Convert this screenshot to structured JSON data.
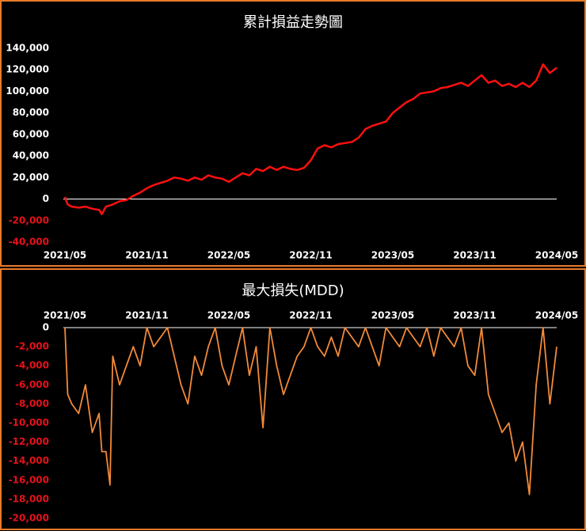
{
  "chart_data": [
    {
      "type": "line",
      "title": "累計損益走勢圖",
      "color": "#ff1010",
      "axis_color": "#ffffff",
      "tick_color": "#ffffff",
      "negative_tick_color": "#e8101a",
      "xaxis_position": "bottom",
      "x": [
        0,
        0.2,
        0.5,
        1,
        1.5,
        2,
        2.5,
        2.7,
        3,
        3.5,
        4,
        4.5,
        5,
        5.5,
        6,
        6.5,
        7,
        7.5,
        8,
        8.5,
        9,
        9.5,
        10,
        10.5,
        11,
        11.5,
        12,
        12.5,
        13,
        13.5,
        14,
        14.5,
        15,
        15.5,
        16,
        16.5,
        17,
        17.5,
        18,
        18.5,
        19,
        19.5,
        20,
        20.5,
        21,
        21.5,
        22,
        22.5,
        23,
        23.5,
        24,
        24.5,
        25,
        25.5,
        26,
        26.5,
        27,
        27.5,
        28,
        28.5,
        29,
        29.5,
        30,
        30.5,
        31,
        31.5,
        32,
        32.5,
        33,
        33.5,
        34,
        34.5,
        35,
        35.5,
        36
      ],
      "values": [
        2000,
        -5000,
        -7000,
        -8000,
        -7000,
        -9000,
        -10000,
        -14000,
        -7000,
        -5000,
        -2000,
        -1000,
        3000,
        6000,
        10000,
        13000,
        15000,
        17000,
        20000,
        19000,
        17000,
        20000,
        18000,
        22000,
        20000,
        19000,
        16000,
        20000,
        24000,
        22000,
        28000,
        26000,
        30000,
        27000,
        30000,
        28000,
        27000,
        29000,
        36000,
        47000,
        50000,
        48000,
        51000,
        52000,
        53000,
        57000,
        65000,
        68000,
        70000,
        72000,
        80000,
        85000,
        90000,
        93000,
        98000,
        99000,
        100000,
        103000,
        104000,
        106000,
        108000,
        105000,
        110000,
        115000,
        108000,
        110000,
        105000,
        107000,
        104000,
        108000,
        104000,
        110000,
        125000,
        117000,
        122000
      ],
      "xlim": [
        0,
        36
      ],
      "xticks": [
        {
          "value": 0,
          "label": "2021/05"
        },
        {
          "value": 6,
          "label": "2021/11"
        },
        {
          "value": 12,
          "label": "2022/05"
        },
        {
          "value": 18,
          "label": "2022/11"
        },
        {
          "value": 24,
          "label": "2023/05"
        },
        {
          "value": 30,
          "label": "2023/11"
        },
        {
          "value": 36,
          "label": "2024/05"
        }
      ],
      "ylim": [
        -40000,
        140000
      ],
      "yticks": [
        {
          "value": -40000,
          "label": "-40,000"
        },
        {
          "value": -20000,
          "label": "-20,000"
        },
        0,
        {
          "value": 20000,
          "label": "20,000"
        },
        {
          "value": 40000,
          "label": "40,000"
        },
        {
          "value": 60000,
          "label": "60,000"
        },
        {
          "value": 80000,
          "label": "80,000"
        },
        {
          "value": 100000,
          "label": "100,000"
        },
        {
          "value": 120000,
          "label": "120,000"
        },
        {
          "value": 140000,
          "label": "140,000"
        }
      ]
    },
    {
      "type": "line",
      "title": "最大損失(MDD)",
      "color": "#f28a3a",
      "axis_color": "#ffffff",
      "tick_color": "#ffffff",
      "negative_tick_color": "#e8101a",
      "xaxis_position": "top",
      "x": [
        0,
        0.2,
        0.5,
        1,
        1.5,
        2,
        2.5,
        2.7,
        3,
        3.3,
        3.5,
        4,
        4.5,
        5,
        5.5,
        6,
        6.5,
        7,
        7.5,
        8,
        8.5,
        9,
        9.5,
        10,
        10.5,
        11,
        11.5,
        12,
        12.5,
        13,
        13.5,
        14,
        14.5,
        15,
        15.5,
        16,
        16.5,
        17,
        17.5,
        18,
        18.5,
        19,
        19.5,
        20,
        20.5,
        21,
        21.5,
        22,
        22.5,
        23,
        23.5,
        24,
        24.5,
        25,
        25.5,
        26,
        26.5,
        27,
        27.5,
        28,
        28.5,
        29,
        29.5,
        30,
        30.5,
        31,
        31.5,
        32,
        32.5,
        33,
        33.5,
        34,
        34.5,
        35,
        35.5,
        36
      ],
      "values": [
        0,
        -7000,
        -8000,
        -9000,
        -6000,
        -11000,
        -9000,
        -13000,
        -13000,
        -16500,
        -3000,
        -6000,
        -4000,
        -2000,
        -4000,
        0,
        -2000,
        -1000,
        0,
        -3000,
        -6000,
        -8000,
        -3000,
        -5000,
        -2000,
        0,
        -4000,
        -6000,
        -3000,
        0,
        -5000,
        -2000,
        -10500,
        0,
        -4000,
        -7000,
        -5000,
        -3000,
        -2000,
        0,
        -2000,
        -3000,
        -1000,
        -3000,
        0,
        -1000,
        -2000,
        0,
        -2000,
        -4000,
        0,
        -1000,
        -2000,
        0,
        -1000,
        -2000,
        0,
        -3000,
        0,
        -1000,
        -2000,
        0,
        -4000,
        -5000,
        0,
        -7000,
        -9000,
        -11000,
        -10000,
        -14000,
        -12000,
        -17500,
        -6000,
        0,
        -8000,
        -2000
      ],
      "xlim": [
        0,
        36
      ],
      "xticks": [
        {
          "value": 0,
          "label": "2021/05"
        },
        {
          "value": 6,
          "label": "2021/11"
        },
        {
          "value": 12,
          "label": "2022/05"
        },
        {
          "value": 18,
          "label": "2022/11"
        },
        {
          "value": 24,
          "label": "2023/05"
        },
        {
          "value": 30,
          "label": "2023/11"
        },
        {
          "value": 36,
          "label": "2024/05"
        }
      ],
      "ylim": [
        -20000,
        0
      ],
      "yticks": [
        0,
        {
          "value": -2000,
          "label": "-2,000"
        },
        {
          "value": -4000,
          "label": "-4,000"
        },
        {
          "value": -6000,
          "label": "-6,000"
        },
        {
          "value": -8000,
          "label": "-8,000"
        },
        {
          "value": -10000,
          "label": "-10,000"
        },
        {
          "value": -12000,
          "label": "-12,000"
        },
        {
          "value": -14000,
          "label": "-14,000"
        },
        {
          "value": -16000,
          "label": "-16,000"
        },
        {
          "value": -18000,
          "label": "-18,000"
        },
        {
          "value": -20000,
          "label": "-20,000"
        }
      ]
    }
  ]
}
